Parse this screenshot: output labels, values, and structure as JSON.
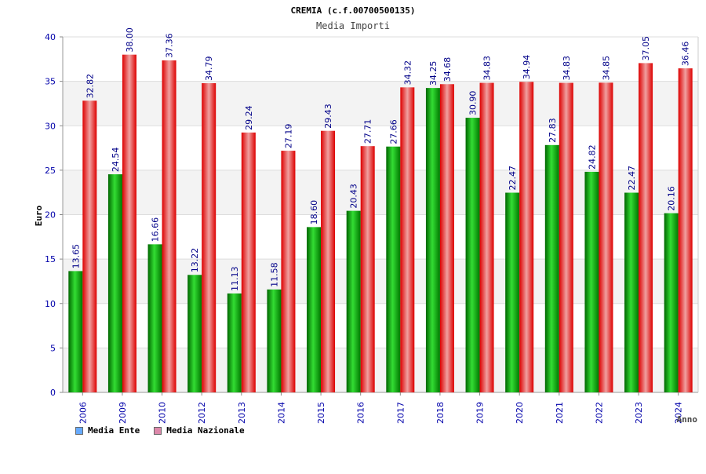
{
  "chart_data": {
    "type": "bar",
    "title": "CREMIA (c.f.00700500135)",
    "subtitle": "Media Importi",
    "xlabel": "Anno",
    "ylabel": "Euro",
    "ylim": [
      0,
      40
    ],
    "yticks": [
      0,
      5,
      10,
      15,
      20,
      25,
      30,
      35,
      40
    ],
    "grid": true,
    "legend_position": "bottom-left",
    "categories": [
      "2006",
      "2009",
      "2010",
      "2012",
      "2013",
      "2014",
      "2015",
      "2016",
      "2017",
      "2018",
      "2019",
      "2020",
      "2021",
      "2022",
      "2023",
      "2024"
    ],
    "series": [
      {
        "name": "Media Ente",
        "color": "#00aa00",
        "legend_color": "#66aaff",
        "values": [
          13.65,
          24.54,
          16.66,
          13.22,
          11.13,
          11.58,
          18.6,
          20.43,
          27.66,
          34.25,
          30.9,
          22.47,
          27.83,
          24.82,
          22.47,
          20.16
        ],
        "labels": [
          "13.65",
          "24.54",
          "16.66",
          "13.22",
          "11.13",
          "11.58",
          "18.60",
          "20.43",
          "27.66",
          "34.25",
          "30.90",
          "22.47",
          "27.83",
          "24.82",
          "22.47",
          "20.16"
        ]
      },
      {
        "name": "Media Nazionale",
        "color": "#ee1111",
        "legend_color": "#dd88aa",
        "values": [
          32.82,
          38.0,
          37.36,
          34.79,
          29.24,
          27.19,
          29.43,
          27.71,
          34.32,
          34.68,
          34.83,
          34.94,
          34.83,
          34.85,
          37.05,
          36.46
        ],
        "labels": [
          "32.82",
          "38.00",
          "37.36",
          "34.79",
          "29.24",
          "27.19",
          "29.43",
          "27.71",
          "34.32",
          "34.68",
          "34.83",
          "34.94",
          "34.83",
          "34.85",
          "37.05",
          "36.46"
        ]
      }
    ]
  }
}
